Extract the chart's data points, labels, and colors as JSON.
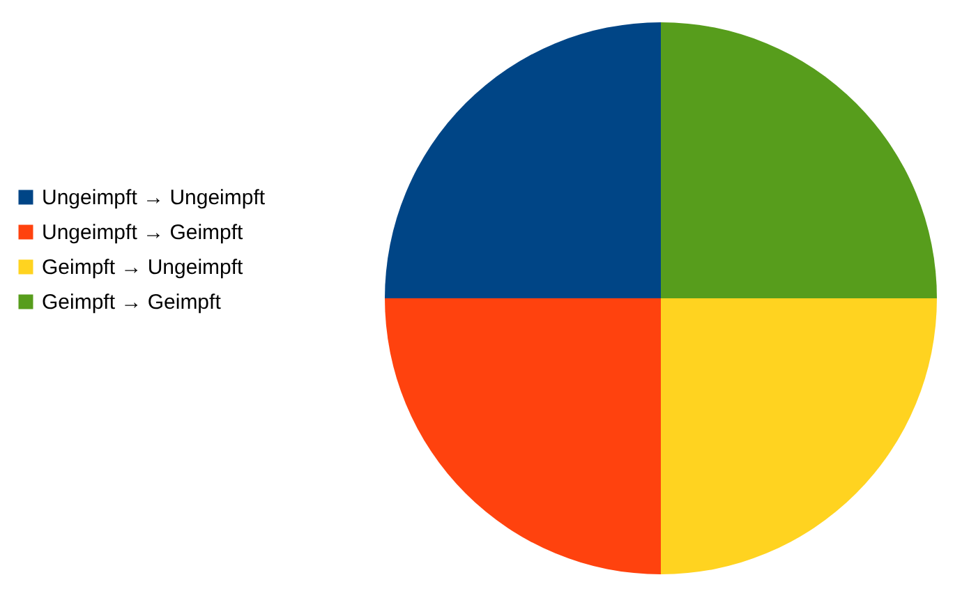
{
  "chart_data": {
    "type": "pie",
    "categories": [
      "Ungeimpft → Ungeimpft",
      "Ungeimpft → Geimpft",
      "Geimpft → Ungeimpft",
      "Geimpft → Geimpft"
    ],
    "values": [
      25,
      25,
      25,
      25
    ],
    "colors": [
      "#004586",
      "#ff420e",
      "#ffd320",
      "#579d1c"
    ],
    "legend": "left"
  }
}
